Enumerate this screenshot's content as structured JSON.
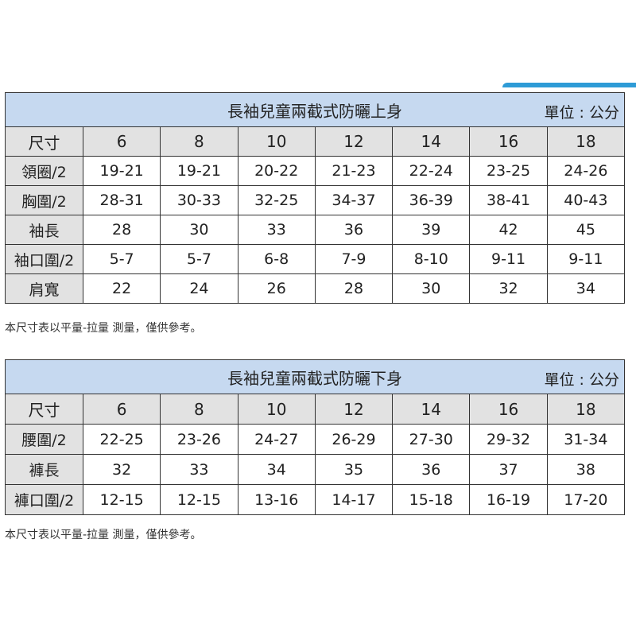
{
  "top": {
    "title": "長袖兒童兩截式防曬上身",
    "unit": "單位 : 公分",
    "header": [
      "尺寸",
      "6",
      "8",
      "10",
      "12",
      "14",
      "16",
      "18"
    ],
    "rows": [
      [
        "領圈/2",
        "19-21",
        "19-21",
        "20-22",
        "21-23",
        "22-24",
        "23-25",
        "24-26"
      ],
      [
        "胸圍/2",
        "28-31",
        "30-33",
        "32-25",
        "34-37",
        "36-39",
        "38-41",
        "40-43"
      ],
      [
        "袖長",
        "28",
        "30",
        "33",
        "36",
        "39",
        "42",
        "45"
      ],
      [
        "袖口圍/2",
        "5-7",
        "5-7",
        "6-8",
        "7-9",
        "8-10",
        "9-11",
        "9-11"
      ],
      [
        "肩寬",
        "22",
        "24",
        "26",
        "28",
        "30",
        "32",
        "34"
      ]
    ],
    "note": "本尺寸表以平量-拉量 測量，僅供參考。"
  },
  "bottom": {
    "title": "長袖兒童兩截式防曬下身",
    "unit": "單位 : 公分",
    "header": [
      "尺寸",
      "6",
      "8",
      "10",
      "12",
      "14",
      "16",
      "18"
    ],
    "rows": [
      [
        "腰圍/2",
        "22-25",
        "23-26",
        "24-27",
        "26-29",
        "27-30",
        "29-32",
        "31-34"
      ],
      [
        "褲長",
        "32",
        "33",
        "34",
        "35",
        "36",
        "37",
        "38"
      ],
      [
        "褲口圍/2",
        "12-15",
        "12-15",
        "13-16",
        "14-17",
        "15-18",
        "16-19",
        "17-20"
      ]
    ],
    "note": "本尺寸表以平量-拉量 測量，僅供參考。"
  },
  "colors": {
    "title_bg": "#c6d9f0",
    "header_bg": "#e2e2e2",
    "accent": "#2e9bd6"
  }
}
